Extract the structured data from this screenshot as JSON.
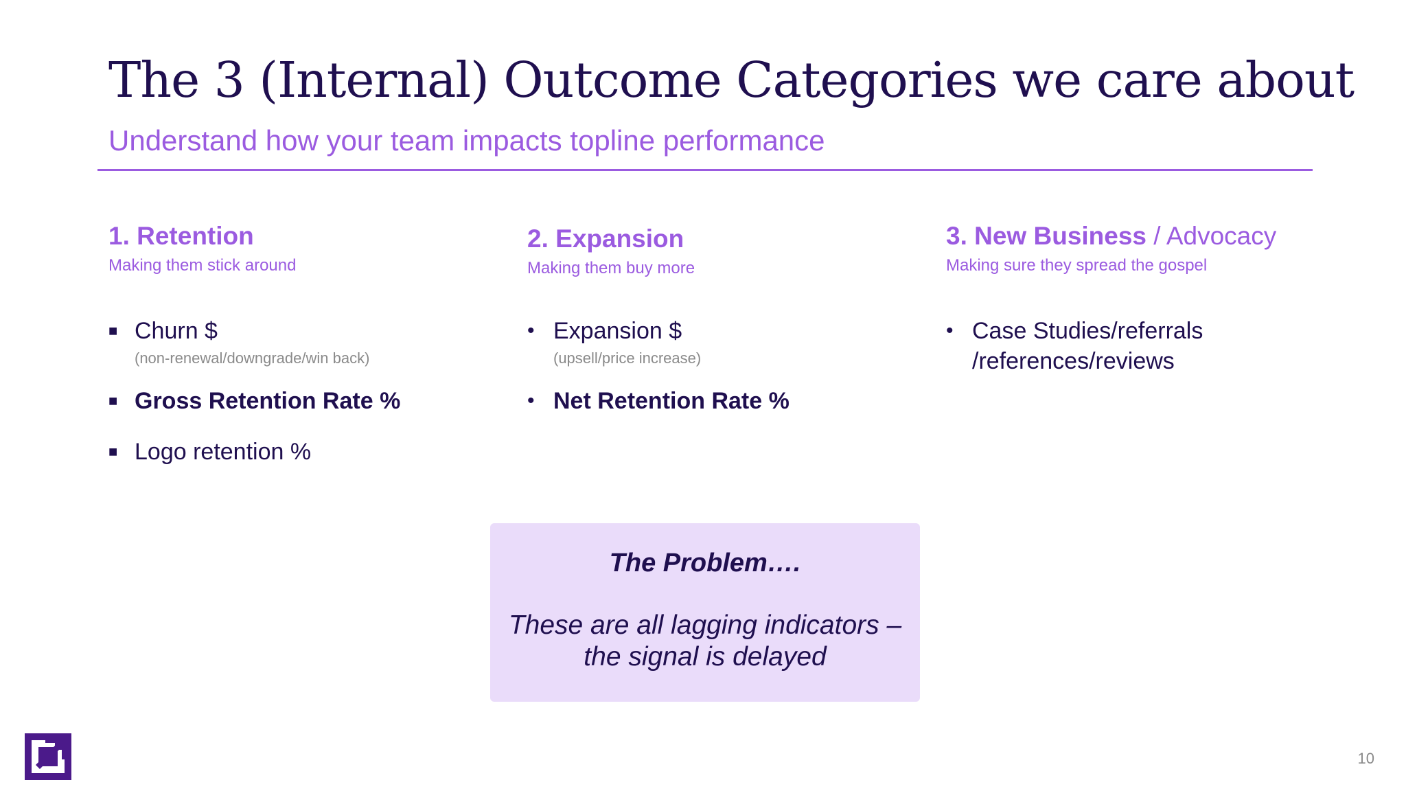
{
  "slide": {
    "title": "The 3 (Internal) Outcome Categories we care about",
    "subtitle": "Understand how your team impacts topline performance",
    "page_number": "10"
  },
  "columns": [
    {
      "heading": "1. Retention",
      "heading_light": "",
      "subheading": "Making them stick around",
      "bullet_style": "square",
      "items": [
        {
          "label": "Churn $",
          "note": "(non-renewal/downgrade/win back)",
          "bold": false
        },
        {
          "label": "Gross Retention Rate %",
          "note": "",
          "bold": true
        },
        {
          "label": "Logo retention %",
          "note": "",
          "bold": false
        }
      ]
    },
    {
      "heading": "2. Expansion",
      "heading_light": "",
      "subheading": "Making them buy more",
      "bullet_style": "dot",
      "items": [
        {
          "label": "Expansion $",
          "note": "(upsell/price increase)",
          "bold": false
        },
        {
          "label": "Net Retention Rate %",
          "note": "",
          "bold": true
        }
      ]
    },
    {
      "heading": "3. New Business",
      "heading_light": " / Advocacy",
      "subheading": "Making sure they spread the gospel",
      "bullet_style": "dot",
      "items": [
        {
          "label": "Case Studies/referrals /references/reviews",
          "note": "",
          "bold": false
        }
      ]
    }
  ],
  "problem": {
    "heading": "The Problem….",
    "body": "These are all lagging indicators – the signal is delayed"
  },
  "colors": {
    "title": "#1f0f4f",
    "accent": "#9b5be0",
    "box_bg": "#eadcfa",
    "muted": "#8a8a8a"
  },
  "icons": {
    "logo": "arrow-square-logo",
    "bullet_square": "square-bullet-icon",
    "bullet_dot": "dot-bullet-icon"
  }
}
